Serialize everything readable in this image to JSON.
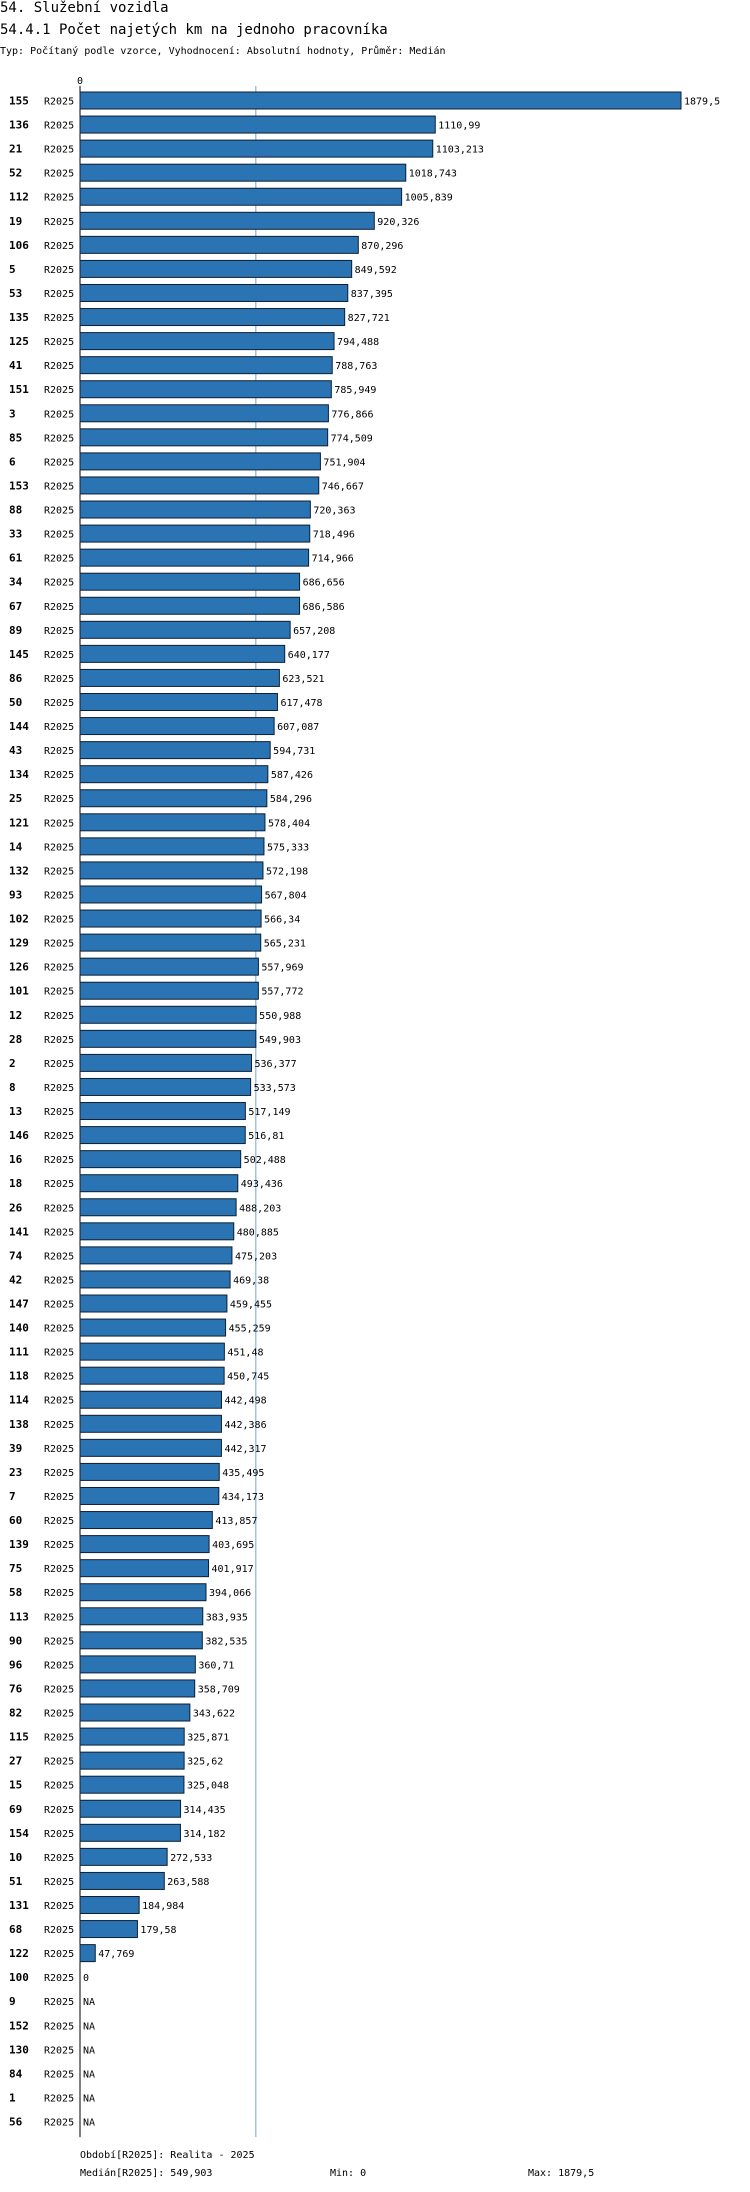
{
  "header": {
    "title": "54. Služební vozidla",
    "subtitle_main": "54.4.1 Počet najetých km na jednoho pracovníka",
    "subtitle_info": "Typ: Počítaný podle vzorce, Vyhodnocení: Absolutní hodnoty, Průměr: Medián"
  },
  "chart_data": {
    "type": "bar",
    "orientation": "horizontal",
    "title": "54.4.1 Počet najetých km na jednoho pracovníka",
    "axis_zero_label": "0",
    "xlim": [
      0,
      1879.5
    ],
    "median": 549.903,
    "series_label": "R2025",
    "colors": {
      "bar": "#2a74b4",
      "bar_border": "#0f1f33",
      "median_line": "#6fa3d6"
    },
    "categories": [
      "155",
      "136",
      "21",
      "52",
      "112",
      "19",
      "106",
      "5",
      "53",
      "135",
      "125",
      "41",
      "151",
      "3",
      "85",
      "6",
      "153",
      "88",
      "33",
      "61",
      "34",
      "67",
      "89",
      "145",
      "86",
      "50",
      "144",
      "43",
      "134",
      "25",
      "121",
      "14",
      "132",
      "93",
      "102",
      "129",
      "126",
      "101",
      "12",
      "28",
      "2",
      "8",
      "13",
      "146",
      "16",
      "18",
      "26",
      "141",
      "74",
      "42",
      "147",
      "140",
      "111",
      "118",
      "114",
      "138",
      "39",
      "23",
      "7",
      "60",
      "139",
      "75",
      "58",
      "113",
      "90",
      "96",
      "76",
      "82",
      "115",
      "27",
      "15",
      "69",
      "154",
      "10",
      "51",
      "131",
      "68",
      "122",
      "100",
      "9",
      "152",
      "130",
      "84",
      "1",
      "56"
    ],
    "values": [
      1879.5,
      1110.99,
      1103.213,
      1018.743,
      1005.839,
      920.326,
      870.296,
      849.592,
      837.395,
      827.721,
      794.488,
      788.763,
      785.949,
      776.866,
      774.509,
      751.904,
      746.667,
      720.363,
      718.496,
      714.966,
      686.656,
      686.586,
      657.208,
      640.177,
      623.521,
      617.478,
      607.087,
      594.731,
      587.426,
      584.296,
      578.404,
      575.333,
      572.198,
      567.804,
      566.34,
      565.231,
      557.969,
      557.772,
      550.988,
      549.903,
      536.377,
      533.573,
      517.149,
      516.81,
      502.488,
      493.436,
      488.203,
      480.885,
      475.203,
      469.38,
      459.455,
      455.259,
      451.48,
      450.745,
      442.498,
      442.386,
      442.317,
      435.495,
      434.173,
      413.857,
      403.695,
      401.917,
      394.066,
      383.935,
      382.535,
      360.71,
      358.709,
      343.622,
      325.871,
      325.62,
      325.048,
      314.435,
      314.182,
      272.533,
      263.588,
      184.984,
      179.58,
      47.769,
      0,
      null,
      null,
      null,
      null,
      null,
      null
    ],
    "value_labels": [
      "1879,5",
      "1110,99",
      "1103,213",
      "1018,743",
      "1005,839",
      "920,326",
      "870,296",
      "849,592",
      "837,395",
      "827,721",
      "794,488",
      "788,763",
      "785,949",
      "776,866",
      "774,509",
      "751,904",
      "746,667",
      "720,363",
      "718,496",
      "714,966",
      "686,656",
      "686,586",
      "657,208",
      "640,177",
      "623,521",
      "617,478",
      "607,087",
      "594,731",
      "587,426",
      "584,296",
      "578,404",
      "575,333",
      "572,198",
      "567,804",
      "566,34",
      "565,231",
      "557,969",
      "557,772",
      "550,988",
      "549,903",
      "536,377",
      "533,573",
      "517,149",
      "516,81",
      "502,488",
      "493,436",
      "488,203",
      "480,885",
      "475,203",
      "469,38",
      "459,455",
      "455,259",
      "451,48",
      "450,745",
      "442,498",
      "442,386",
      "442,317",
      "435,495",
      "434,173",
      "413,857",
      "403,695",
      "401,917",
      "394,066",
      "383,935",
      "382,535",
      "360,71",
      "358,709",
      "343,622",
      "325,871",
      "325,62",
      "325,048",
      "314,435",
      "314,182",
      "272,533",
      "263,588",
      "184,984",
      "179,58",
      "47,769",
      "0",
      "NA",
      "NA",
      "NA",
      "NA",
      "NA",
      "NA"
    ]
  },
  "footer": {
    "period": "Období[R2025]: Realita - 2025",
    "median": "Medián[R2025]: 549,903",
    "min": "Min: 0",
    "max": "Max: 1879,5"
  }
}
